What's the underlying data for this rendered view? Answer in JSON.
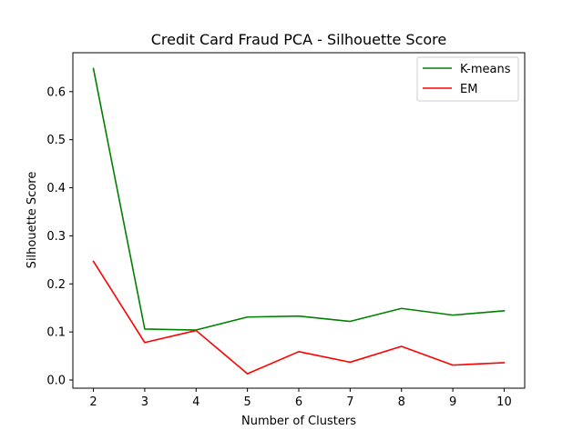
{
  "chart_data": {
    "type": "line",
    "title": "Credit Card Fraud PCA - Silhouette Score",
    "xlabel": "Number of Clusters",
    "ylabel": "Silhouette Score",
    "x": [
      2,
      3,
      4,
      5,
      6,
      7,
      8,
      9,
      10
    ],
    "xticks": [
      "2",
      "3",
      "4",
      "5",
      "6",
      "7",
      "8",
      "9",
      "10"
    ],
    "yticks": [
      "0.0",
      "0.1",
      "0.2",
      "0.3",
      "0.4",
      "0.5",
      "0.6"
    ],
    "xlim": [
      1.6,
      10.4
    ],
    "ylim": [
      -0.017,
      0.681
    ],
    "grid": false,
    "legend_position": "upper right",
    "series": [
      {
        "name": "K-means",
        "color": "#008000",
        "values": [
          0.648,
          0.106,
          0.104,
          0.131,
          0.133,
          0.122,
          0.149,
          0.135,
          0.144
        ]
      },
      {
        "name": "EM",
        "color": "#ff0000",
        "values": [
          0.247,
          0.078,
          0.103,
          0.013,
          0.059,
          0.037,
          0.07,
          0.031,
          0.036
        ]
      }
    ]
  }
}
